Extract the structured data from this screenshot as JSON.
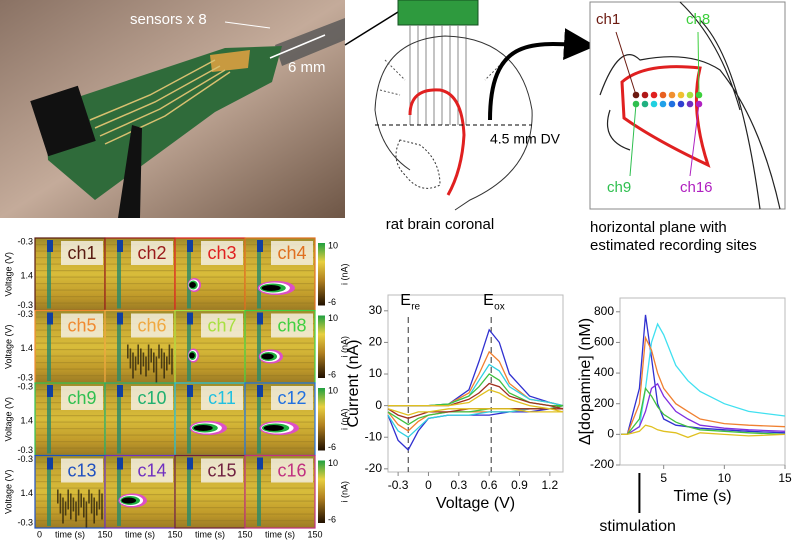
{
  "photo": {
    "label": "sensors x 8",
    "scale": "6 mm"
  },
  "coronal": {
    "depth": "4.5 mm DV",
    "caption": "rat brain coronal"
  },
  "horizontal": {
    "labels": [
      {
        "text": "ch1",
        "color": "#6b1a10"
      },
      {
        "text": "ch8",
        "color": "#3ccf3c"
      },
      {
        "text": "ch9",
        "color": "#2fbf4f"
      },
      {
        "text": "ch16",
        "color": "#b020c0"
      }
    ],
    "caption": [
      "horizontal plane with",
      "estimated recording sites"
    ]
  },
  "heatmaps": {
    "panels": [
      {
        "label": "ch1",
        "color": "#5a1a10"
      },
      {
        "label": "ch2",
        "color": "#9a1a1a"
      },
      {
        "label": "ch3",
        "color": "#e02020"
      },
      {
        "label": "ch4",
        "color": "#e07020"
      },
      {
        "label": "ch5",
        "color": "#f08a30"
      },
      {
        "label": "ch6",
        "color": "#f0a840"
      },
      {
        "label": "ch7",
        "color": "#a8e040"
      },
      {
        "label": "ch8",
        "color": "#40d040"
      },
      {
        "label": "ch9",
        "color": "#30c050"
      },
      {
        "label": "c10",
        "color": "#20b070"
      },
      {
        "label": "c11",
        "color": "#20c0e0"
      },
      {
        "label": "c12",
        "color": "#2070e0"
      },
      {
        "label": "c13",
        "color": "#2050c0"
      },
      {
        "label": "c14",
        "color": "#7030c0"
      },
      {
        "label": "c15",
        "color": "#702040"
      },
      {
        "label": "c16",
        "color": "#c03080"
      }
    ],
    "y_ticks": [
      "-0.3",
      "1.4",
      "-0.3"
    ],
    "y_label": "Voltage (V)",
    "colorbar": {
      "max": "10",
      "min": "-6",
      "label": "i (nA)"
    },
    "x_axis": {
      "start": "0",
      "label": "time (s)",
      "end": "150"
    }
  },
  "chart_data": [
    {
      "type": "line",
      "x_label": "Voltage (V)",
      "y_label": "Current (nA)",
      "annotations": [
        {
          "text": "E",
          "sub": "re",
          "x": -0.2
        },
        {
          "text": "E",
          "sub": "ox",
          "x": 0.62
        }
      ],
      "x": [
        -0.4,
        -0.2,
        0,
        0.2,
        0.4,
        0.5,
        0.6,
        0.7,
        0.8,
        1.0,
        1.2,
        1.33,
        1.2,
        1.0,
        0.8,
        0.6,
        0.4,
        0.2,
        0,
        -0.1,
        -0.2,
        -0.3,
        -0.4
      ],
      "series": [
        {
          "color": "#3030d0",
          "values": [
            0,
            0,
            0,
            0.5,
            5,
            14,
            24,
            20,
            10,
            3,
            1,
            0,
            -1,
            -2,
            -2,
            -3,
            -3,
            -3,
            -4,
            -8,
            -14,
            -11,
            -3
          ]
        },
        {
          "color": "#f08030",
          "values": [
            0,
            0,
            0,
            0.5,
            4,
            10,
            17,
            14,
            7,
            2,
            1,
            0,
            -1,
            -1,
            -2,
            -2,
            -2,
            -2,
            -3,
            -5,
            -8,
            -6,
            -2
          ]
        },
        {
          "color": "#30d0e0",
          "values": [
            0,
            0,
            0,
            0.5,
            3,
            8,
            13,
            11,
            6,
            2,
            1,
            0,
            -1,
            -1,
            -2,
            -2,
            -3,
            -3,
            -4,
            -7,
            -10,
            -8,
            -3
          ]
        },
        {
          "color": "#40c040",
          "values": [
            0,
            0,
            0,
            0.5,
            3,
            6,
            10,
            8,
            4,
            1,
            0,
            0,
            -1,
            -1,
            -1,
            -1,
            -2,
            -2,
            -3,
            -4,
            -6,
            -4,
            -2
          ]
        },
        {
          "color": "#a03020",
          "values": [
            0,
            0,
            0,
            0,
            2,
            4,
            7,
            6,
            3,
            1,
            0,
            -1,
            -1,
            -1,
            -1,
            -1,
            -1,
            -2,
            -2,
            -3,
            -4,
            -3,
            -1
          ]
        },
        {
          "color": "#e0c020",
          "values": [
            0,
            0,
            0,
            0,
            1,
            3,
            5,
            4,
            2,
            0,
            -1,
            -2,
            -2,
            -2,
            -1,
            -1,
            -1,
            -1,
            -2,
            -2,
            -3,
            -2,
            -1
          ]
        }
      ],
      "xlim": [
        -0.4,
        1.33
      ],
      "ylim": [
        -21,
        35
      ],
      "xticks": [
        -0.3,
        0,
        0.3,
        0.6,
        0.9,
        1.2
      ],
      "yticks": [
        -20,
        -10,
        0,
        10,
        20,
        30
      ]
    },
    {
      "type": "line",
      "x_label": "Time (s)",
      "y_label": "Δ[dopamine] (nM)",
      "annotation": "stimulation",
      "stimulus_x": 3,
      "x": [
        1.5,
        2,
        3,
        3.5,
        4,
        4.5,
        5,
        6,
        7,
        8,
        10,
        12,
        15
      ],
      "series": [
        {
          "color": "#3030d0",
          "values": [
            0,
            0,
            300,
            780,
            500,
            200,
            100,
            60,
            50,
            40,
            30,
            20,
            10
          ]
        },
        {
          "color": "#40e0f0",
          "values": [
            0,
            0,
            50,
            300,
            600,
            720,
            650,
            450,
            350,
            280,
            200,
            150,
            120
          ]
        },
        {
          "color": "#f08030",
          "values": [
            0,
            0,
            200,
            630,
            550,
            400,
            300,
            200,
            150,
            100,
            70,
            60,
            50
          ]
        },
        {
          "color": "#8030e0",
          "values": [
            0,
            0,
            50,
            150,
            300,
            330,
            250,
            150,
            100,
            60,
            40,
            30,
            20
          ]
        },
        {
          "color": "#40c040",
          "values": [
            0,
            0,
            100,
            300,
            250,
            180,
            130,
            80,
            50,
            30,
            20,
            10,
            0
          ]
        },
        {
          "color": "#e0c020",
          "values": [
            0,
            0,
            20,
            60,
            50,
            30,
            20,
            10,
            -20,
            10,
            0,
            -10,
            0
          ]
        }
      ],
      "xlim": [
        1.4,
        15
      ],
      "ylim": [
        -200,
        890
      ],
      "xticks": [
        5,
        10,
        15
      ],
      "yticks": [
        -200,
        0,
        200,
        400,
        600,
        800
      ]
    }
  ]
}
